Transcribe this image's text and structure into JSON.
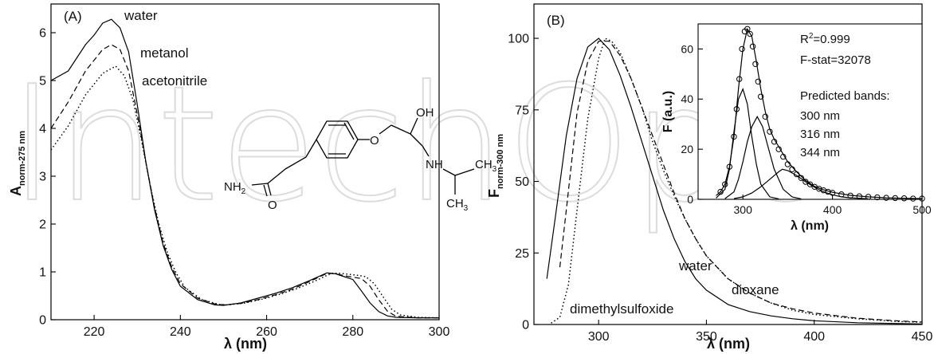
{
  "watermark": "IntechOpen",
  "chart_data": [
    {
      "type": "line",
      "panel_label": "(A)",
      "xlabel": "λ (nm)",
      "ylabel_main": "A",
      "ylabel_sub": "norm-275 nm",
      "xlim": [
        210,
        300
      ],
      "ylim": [
        0,
        6.6
      ],
      "xticks": [
        220,
        240,
        260,
        280,
        300
      ],
      "yticks": [
        0,
        1,
        2,
        3,
        4,
        5,
        6
      ],
      "series": [
        {
          "name": "water",
          "style": "solid",
          "x": [
            210,
            214,
            218,
            220,
            222,
            224,
            226,
            228,
            230,
            232,
            234,
            236,
            238,
            240,
            244,
            248,
            250,
            254,
            258,
            262,
            266,
            270,
            274,
            276,
            278,
            280,
            282,
            284,
            286,
            288,
            290,
            295,
            300
          ],
          "y": [
            5.0,
            5.2,
            5.75,
            5.95,
            6.2,
            6.28,
            6.1,
            5.6,
            4.5,
            3.3,
            2.3,
            1.55,
            1.05,
            0.7,
            0.42,
            0.31,
            0.3,
            0.35,
            0.45,
            0.55,
            0.67,
            0.82,
            0.98,
            0.96,
            0.9,
            0.84,
            0.6,
            0.35,
            0.17,
            0.08,
            0.05,
            0.04,
            0.04
          ]
        },
        {
          "name": "metanol",
          "style": "dashed",
          "x": [
            210,
            214,
            218,
            222,
            224,
            226,
            228,
            230,
            232,
            234,
            236,
            238,
            240,
            244,
            248,
            250,
            254,
            258,
            262,
            266,
            270,
            274,
            276,
            278,
            280,
            282,
            284,
            286,
            288,
            290,
            295,
            300
          ],
          "y": [
            4.0,
            4.55,
            5.2,
            5.65,
            5.75,
            5.65,
            5.2,
            4.3,
            3.3,
            2.35,
            1.6,
            1.1,
            0.75,
            0.45,
            0.33,
            0.31,
            0.34,
            0.42,
            0.52,
            0.64,
            0.8,
            0.97,
            0.96,
            0.92,
            0.89,
            0.86,
            0.7,
            0.42,
            0.18,
            0.07,
            0.04,
            0.04
          ]
        },
        {
          "name": "acetonitrile",
          "style": "dotted",
          "x": [
            210,
            214,
            218,
            222,
            225,
            227,
            229,
            231,
            233,
            235,
            237,
            239,
            241,
            245,
            249,
            251,
            255,
            259,
            263,
            267,
            271,
            275,
            277,
            279,
            281,
            283,
            285,
            287,
            289,
            291,
            295,
            300
          ],
          "y": [
            3.55,
            4.05,
            4.7,
            5.15,
            5.3,
            5.1,
            4.6,
            3.75,
            2.8,
            2.0,
            1.4,
            0.98,
            0.68,
            0.42,
            0.32,
            0.31,
            0.35,
            0.43,
            0.53,
            0.65,
            0.8,
            0.97,
            0.97,
            0.95,
            0.93,
            0.9,
            0.75,
            0.48,
            0.22,
            0.1,
            0.05,
            0.04
          ]
        }
      ],
      "annotations": {
        "structure_left": "NH",
        "structure_left_sub": "2",
        "carbonyl_o": "O",
        "ether_o": "O",
        "oh": "OH",
        "nh": "NH",
        "ch3_top": "CH",
        "ch3_top_sub": "3",
        "ch3_bot": "CH",
        "ch3_bot_sub": "3"
      }
    },
    {
      "type": "line",
      "panel_label": "(B)",
      "xlabel": "λ (nm)",
      "ylabel_main": "F",
      "ylabel_sub": "norm-300 nm",
      "xlim": [
        270,
        450
      ],
      "ylim": [
        0,
        112
      ],
      "xticks": [
        300,
        350,
        400,
        450
      ],
      "yticks": [
        0,
        25,
        50,
        75,
        100
      ],
      "series": [
        {
          "name": "water",
          "style": "solid",
          "x": [
            276,
            280,
            285,
            290,
            295,
            300,
            305,
            310,
            315,
            320,
            325,
            330,
            335,
            340,
            345,
            350,
            360,
            370,
            380,
            390,
            400,
            420,
            440,
            450
          ],
          "y": [
            16,
            38,
            66,
            86,
            97,
            100,
            96,
            87,
            76,
            64,
            52,
            40,
            30,
            22,
            16,
            12,
            7,
            4.5,
            3,
            2,
            1.3,
            0.6,
            0.3,
            0.2
          ]
        },
        {
          "name": "dioxane",
          "style": "dashed",
          "x": [
            282,
            285,
            290,
            295,
            300,
            305,
            310,
            315,
            320,
            325,
            330,
            335,
            340,
            345,
            350,
            360,
            370,
            380,
            390,
            400,
            420,
            440,
            450
          ],
          "y": [
            20,
            40,
            74,
            92,
            99,
            99,
            94,
            86,
            76,
            66,
            56,
            46,
            37,
            30,
            24,
            16,
            11,
            7.5,
            5.5,
            4,
            2.2,
            1.2,
            0.9
          ]
        },
        {
          "name": "dimethylsulfoxide",
          "style": "dotted",
          "x": [
            278,
            282,
            286,
            290,
            295,
            300,
            303,
            306,
            310,
            315,
            320,
            325,
            330,
            335,
            340,
            345,
            350,
            360,
            370,
            380,
            390,
            400,
            420,
            440,
            450
          ],
          "y": [
            0.5,
            2.5,
            14,
            40,
            72,
            93,
            100,
            99,
            95,
            86,
            76,
            64,
            54,
            45,
            37,
            30,
            24,
            16,
            11,
            7.5,
            5,
            3.5,
            2,
            1,
            0.8
          ]
        }
      ],
      "labels": {
        "water": "water",
        "dioxane": "dioxane",
        "dimethylsulfoxide": "dimethylsulfoxide"
      }
    },
    {
      "type": "line",
      "panel_label": "inset",
      "xlabel": "λ (nm)",
      "ylabel": "F (a.u.)",
      "xlim": [
        250,
        500
      ],
      "ylim": [
        0,
        70
      ],
      "xticks": [
        300,
        400,
        500
      ],
      "yticks": [
        0,
        20,
        40,
        60
      ],
      "series": [
        {
          "name": "measured",
          "style": "circles",
          "x": [
            275,
            280,
            285,
            290,
            293,
            296,
            299,
            302,
            305,
            308,
            311,
            314,
            317,
            320,
            325,
            330,
            335,
            340,
            345,
            350,
            355,
            360,
            365,
            370,
            375,
            380,
            385,
            390,
            395,
            400,
            410,
            420,
            430,
            440,
            450,
            460,
            470,
            480,
            490,
            500
          ],
          "y": [
            3,
            6,
            13,
            25,
            36,
            48,
            60,
            67,
            68,
            66,
            61,
            54,
            47,
            41,
            33,
            27,
            23,
            20,
            17,
            14,
            12,
            10,
            8.5,
            7,
            6,
            5,
            4.2,
            3.6,
            3,
            2.6,
            2,
            1.5,
            1.2,
            1,
            0.8,
            0.6,
            0.5,
            0.4,
            0.3,
            0.3
          ]
        },
        {
          "name": "fit",
          "style": "solid",
          "x": [
            270,
            275,
            280,
            285,
            290,
            295,
            300,
            305,
            310,
            315,
            320,
            325,
            330,
            335,
            340,
            345,
            350,
            360,
            370,
            380,
            390,
            400,
            420,
            440,
            460,
            480,
            500
          ],
          "y": [
            1.5,
            3,
            6,
            13,
            25,
            44,
            60,
            68,
            65,
            55,
            44,
            35,
            28,
            24,
            21,
            18,
            15,
            11,
            7.5,
            5.2,
            3.8,
            2.8,
            1.6,
            1,
            0.6,
            0.4,
            0.3
          ]
        },
        {
          "name": "band 300 nm",
          "style": "solid",
          "x": [
            270,
            280,
            285,
            290,
            295,
            300,
            305,
            310,
            315,
            320,
            330,
            340
          ],
          "y": [
            0.5,
            4,
            12,
            27,
            40,
            44,
            38,
            25,
            14,
            6,
            1,
            0.2
          ]
        },
        {
          "name": "band 316 nm",
          "style": "solid",
          "x": [
            280,
            290,
            295,
            300,
            305,
            310,
            316,
            322,
            328,
            335,
            345,
            355,
            365
          ],
          "y": [
            0.3,
            3,
            8,
            15,
            23,
            29,
            33,
            29,
            21,
            12,
            4,
            1,
            0.2
          ]
        },
        {
          "name": "band 344 nm",
          "style": "solid",
          "x": [
            290,
            300,
            310,
            320,
            330,
            340,
            344,
            350,
            360,
            370,
            380,
            390,
            400,
            410,
            420,
            440
          ],
          "y": [
            0.3,
            1,
            2.5,
            5,
            8,
            11,
            12,
            11.5,
            9.5,
            7,
            4.8,
            3,
            1.8,
            1,
            0.6,
            0.2
          ]
        }
      ],
      "stats": [
        "R²=0.999",
        "F-stat=32078"
      ],
      "bands_title": "Predicted bands:",
      "bands": [
        "300 nm",
        "316 nm",
        "344 nm"
      ]
    }
  ]
}
